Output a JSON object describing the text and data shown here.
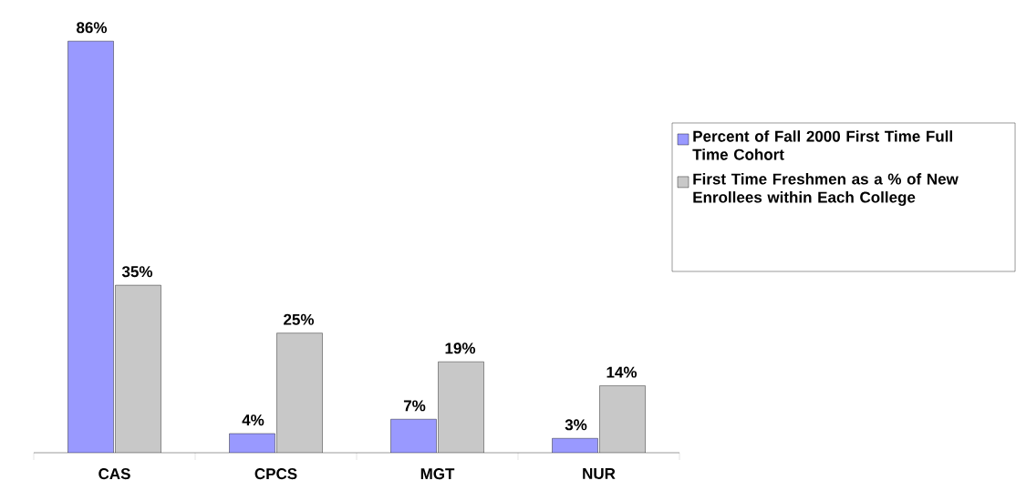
{
  "chart_data": {
    "type": "bar",
    "categories": [
      "CAS",
      "CPCS",
      "MGT",
      "NUR"
    ],
    "series": [
      {
        "name": "Percent of Fall 2000 First Time  Full Time Cohort",
        "color": "#9999ff",
        "values": [
          86,
          4,
          7,
          3
        ],
        "value_labels": [
          "86%",
          "4%",
          "7%",
          "3%"
        ]
      },
      {
        "name": "First Time Freshmen as a % of New Enrollees within Each College",
        "color": "#c8c8c8",
        "values": [
          35,
          25,
          19,
          14
        ],
        "value_labels": [
          "35%",
          "25%",
          "19%",
          "14%"
        ]
      }
    ],
    "legend": "right"
  }
}
